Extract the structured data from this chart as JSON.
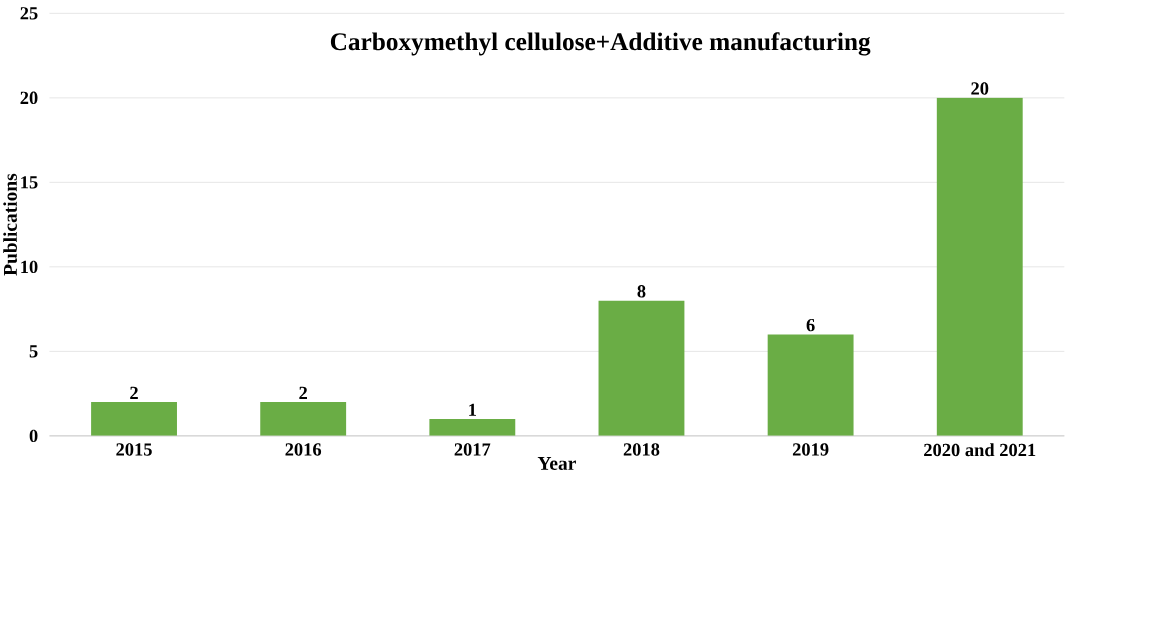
{
  "chart_data": {
    "type": "bar",
    "title": "Carboxymethyl cellulose+Additive manufacturing",
    "xlabel": "Year",
    "ylabel": "Publications",
    "categories": [
      "2015",
      "2016",
      "2017",
      "2018",
      "2019",
      "2020 and 2021"
    ],
    "values": [
      2,
      2,
      1,
      8,
      6,
      20
    ],
    "color": "#6aad45",
    "ylim": [
      0,
      25
    ],
    "yticks": [
      0,
      5,
      10,
      15,
      20,
      25
    ],
    "grid": "y",
    "data_labels": true
  }
}
